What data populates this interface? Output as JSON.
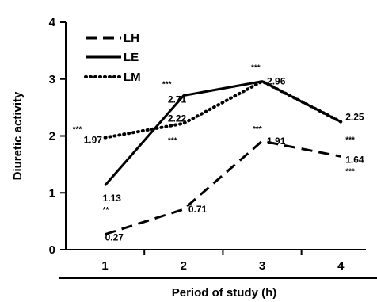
{
  "chart_data": {
    "type": "line",
    "xlabel": "Period of study (h)",
    "ylabel": "Diuretic activity",
    "x": [
      1,
      2,
      3,
      4
    ],
    "xlim": [
      0.5,
      4.3
    ],
    "ylim": [
      0,
      4
    ],
    "yticks": [
      0,
      1,
      2,
      3,
      4
    ],
    "grid": false,
    "legend_position": "top-left",
    "series": [
      {
        "name": "LH",
        "style": "dashed",
        "color": "#000000",
        "values": [
          0.27,
          0.71,
          1.91,
          1.64
        ],
        "labels": [
          "0.27",
          "0.71",
          "1.91",
          "1.64"
        ],
        "significance": [
          "",
          "",
          "***",
          "***"
        ]
      },
      {
        "name": "LE",
        "style": "solid",
        "color": "#000000",
        "values": [
          1.13,
          2.71,
          2.96,
          2.25
        ],
        "labels": [
          "1.13",
          "2.71",
          "2.96",
          "2.25"
        ],
        "significance": [
          "**",
          "***",
          "***",
          "***"
        ]
      },
      {
        "name": "LM",
        "style": "dotted",
        "color": "#000000",
        "values": [
          1.97,
          2.22,
          2.96,
          2.25
        ],
        "labels": [
          "1.97",
          "2.22",
          "",
          ""
        ],
        "significance": [
          "***",
          "***",
          "",
          ""
        ]
      }
    ]
  }
}
